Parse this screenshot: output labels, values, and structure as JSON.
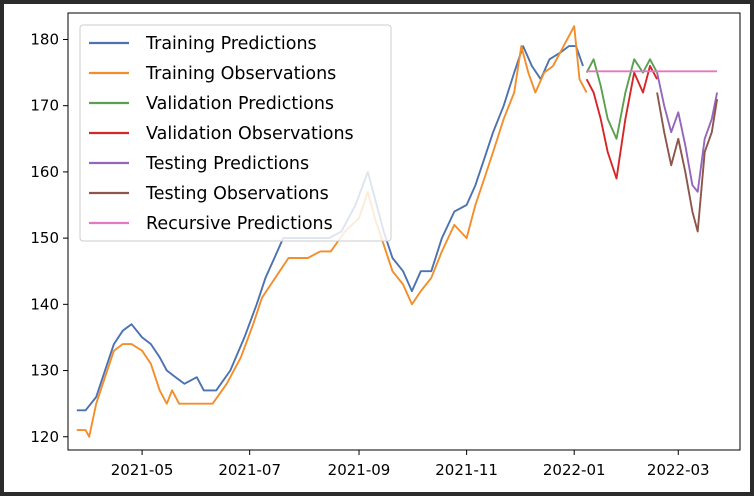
{
  "chart_data": {
    "type": "line",
    "title": "",
    "xlabel": "",
    "ylabel": "",
    "x_tick_labels": [
      "2021-05",
      "2021-07",
      "2021-09",
      "2021-11",
      "2022-01",
      "2022-03"
    ],
    "x_tick_dates": [
      "2021-05-01",
      "2021-07-01",
      "2021-09-01",
      "2021-11-01",
      "2022-01-01",
      "2022-03-01"
    ],
    "y_tick_labels": [
      "120",
      "130",
      "140",
      "150",
      "160",
      "170",
      "180"
    ],
    "y_ticks": [
      120,
      130,
      140,
      150,
      160,
      170,
      180
    ],
    "xlim": [
      "2021-03-20",
      "2022-04-05"
    ],
    "ylim": [
      118,
      184
    ],
    "grid": false,
    "legend_position": "upper-left",
    "series": [
      {
        "name": "Training Predictions",
        "color": "#4c72b0",
        "points": [
          [
            "2021-03-25",
            124
          ],
          [
            "2021-03-30",
            124
          ],
          [
            "2021-04-05",
            126
          ],
          [
            "2021-04-10",
            130
          ],
          [
            "2021-04-15",
            134
          ],
          [
            "2021-04-20",
            136
          ],
          [
            "2021-04-25",
            137
          ],
          [
            "2021-05-01",
            135
          ],
          [
            "2021-05-06",
            134
          ],
          [
            "2021-05-11",
            132
          ],
          [
            "2021-05-15",
            130
          ],
          [
            "2021-05-20",
            129
          ],
          [
            "2021-05-25",
            128
          ],
          [
            "2021-06-01",
            129
          ],
          [
            "2021-06-05",
            127
          ],
          [
            "2021-06-12",
            127
          ],
          [
            "2021-06-20",
            130
          ],
          [
            "2021-06-28",
            135
          ],
          [
            "2021-07-05",
            140
          ],
          [
            "2021-07-10",
            144
          ],
          [
            "2021-07-15",
            147
          ],
          [
            "2021-07-20",
            150
          ],
          [
            "2021-07-25",
            150
          ],
          [
            "2021-08-01",
            150
          ],
          [
            "2021-08-08",
            150
          ],
          [
            "2021-08-15",
            150
          ],
          [
            "2021-08-22",
            151
          ],
          [
            "2021-08-30",
            155
          ],
          [
            "2021-09-06",
            160
          ],
          [
            "2021-09-10",
            156
          ],
          [
            "2021-09-15",
            151
          ],
          [
            "2021-09-20",
            147
          ],
          [
            "2021-09-26",
            145
          ],
          [
            "2021-10-01",
            142
          ],
          [
            "2021-10-06",
            145
          ],
          [
            "2021-10-12",
            145
          ],
          [
            "2021-10-18",
            150
          ],
          [
            "2021-10-25",
            154
          ],
          [
            "2021-11-01",
            155
          ],
          [
            "2021-11-06",
            158
          ],
          [
            "2021-11-11",
            162
          ],
          [
            "2021-11-16",
            166
          ],
          [
            "2021-11-22",
            170
          ],
          [
            "2021-11-28",
            175
          ],
          [
            "2021-12-03",
            179
          ],
          [
            "2021-12-08",
            176
          ],
          [
            "2021-12-13",
            174
          ],
          [
            "2021-12-18",
            177
          ],
          [
            "2021-12-24",
            178
          ],
          [
            "2021-12-29",
            179
          ],
          [
            "2022-01-02",
            179
          ],
          [
            "2022-01-06",
            176
          ]
        ]
      },
      {
        "name": "Training Observations",
        "color": "#f28e2b",
        "points": [
          [
            "2021-03-25",
            121
          ],
          [
            "2021-03-30",
            121
          ],
          [
            "2021-04-01",
            120
          ],
          [
            "2021-04-05",
            125
          ],
          [
            "2021-04-10",
            129
          ],
          [
            "2021-04-15",
            133
          ],
          [
            "2021-04-20",
            134
          ],
          [
            "2021-04-25",
            134
          ],
          [
            "2021-05-01",
            133
          ],
          [
            "2021-05-06",
            131
          ],
          [
            "2021-05-11",
            127
          ],
          [
            "2021-05-15",
            125
          ],
          [
            "2021-05-18",
            127
          ],
          [
            "2021-05-22",
            125
          ],
          [
            "2021-05-28",
            125
          ],
          [
            "2021-06-03",
            125
          ],
          [
            "2021-06-10",
            125
          ],
          [
            "2021-06-18",
            128
          ],
          [
            "2021-06-26",
            132
          ],
          [
            "2021-07-03",
            137
          ],
          [
            "2021-07-08",
            141
          ],
          [
            "2021-07-13",
            143
          ],
          [
            "2021-07-18",
            145
          ],
          [
            "2021-07-23",
            147
          ],
          [
            "2021-07-28",
            147
          ],
          [
            "2021-08-03",
            147
          ],
          [
            "2021-08-10",
            148
          ],
          [
            "2021-08-16",
            148
          ],
          [
            "2021-08-24",
            151
          ],
          [
            "2021-09-01",
            153
          ],
          [
            "2021-09-06",
            157
          ],
          [
            "2021-09-10",
            153
          ],
          [
            "2021-09-15",
            149
          ],
          [
            "2021-09-20",
            145
          ],
          [
            "2021-09-26",
            143
          ],
          [
            "2021-10-01",
            140
          ],
          [
            "2021-10-06",
            142
          ],
          [
            "2021-10-12",
            144
          ],
          [
            "2021-10-18",
            148
          ],
          [
            "2021-10-25",
            152
          ],
          [
            "2021-11-01",
            150
          ],
          [
            "2021-11-06",
            155
          ],
          [
            "2021-11-11",
            159
          ],
          [
            "2021-11-16",
            163
          ],
          [
            "2021-11-22",
            168
          ],
          [
            "2021-11-28",
            172
          ],
          [
            "2021-12-02",
            179
          ],
          [
            "2021-12-06",
            175
          ],
          [
            "2021-12-10",
            172
          ],
          [
            "2021-12-15",
            175
          ],
          [
            "2021-12-20",
            176
          ],
          [
            "2021-12-26",
            179
          ],
          [
            "2022-01-01",
            182
          ],
          [
            "2022-01-04",
            174
          ],
          [
            "2022-01-08",
            172
          ]
        ]
      },
      {
        "name": "Validation Predictions",
        "color": "#59a14f",
        "points": [
          [
            "2022-01-08",
            175
          ],
          [
            "2022-01-12",
            177
          ],
          [
            "2022-01-16",
            173
          ],
          [
            "2022-01-20",
            168
          ],
          [
            "2022-01-25",
            165
          ],
          [
            "2022-01-30",
            172
          ],
          [
            "2022-02-04",
            177
          ],
          [
            "2022-02-09",
            175
          ],
          [
            "2022-02-13",
            177
          ],
          [
            "2022-02-17",
            175
          ]
        ]
      },
      {
        "name": "Validation Observations",
        "color": "#d62728",
        "points": [
          [
            "2022-01-08",
            174
          ],
          [
            "2022-01-12",
            172
          ],
          [
            "2022-01-16",
            168
          ],
          [
            "2022-01-20",
            163
          ],
          [
            "2022-01-25",
            159
          ],
          [
            "2022-01-30",
            168
          ],
          [
            "2022-02-04",
            175
          ],
          [
            "2022-02-09",
            172
          ],
          [
            "2022-02-13",
            176
          ],
          [
            "2022-02-17",
            174
          ]
        ]
      },
      {
        "name": "Testing Predictions",
        "color": "#9467bd",
        "points": [
          [
            "2022-02-17",
            175
          ],
          [
            "2022-02-21",
            170
          ],
          [
            "2022-02-25",
            166
          ],
          [
            "2022-03-01",
            169
          ],
          [
            "2022-03-05",
            164
          ],
          [
            "2022-03-09",
            158
          ],
          [
            "2022-03-12",
            157
          ],
          [
            "2022-03-16",
            165
          ],
          [
            "2022-03-20",
            168
          ],
          [
            "2022-03-23",
            172
          ]
        ]
      },
      {
        "name": "Testing Observations",
        "color": "#8c564b",
        "points": [
          [
            "2022-02-17",
            172
          ],
          [
            "2022-02-21",
            166
          ],
          [
            "2022-02-25",
            161
          ],
          [
            "2022-03-01",
            165
          ],
          [
            "2022-03-05",
            160
          ],
          [
            "2022-03-09",
            154
          ],
          [
            "2022-03-12",
            151
          ],
          [
            "2022-03-16",
            163
          ],
          [
            "2022-03-20",
            166
          ],
          [
            "2022-03-23",
            171
          ]
        ]
      },
      {
        "name": "Recursive Predictions",
        "color": "#e377c2",
        "points": [
          [
            "2022-01-08",
            175.2
          ],
          [
            "2022-03-23",
            175.2
          ]
        ]
      }
    ]
  }
}
